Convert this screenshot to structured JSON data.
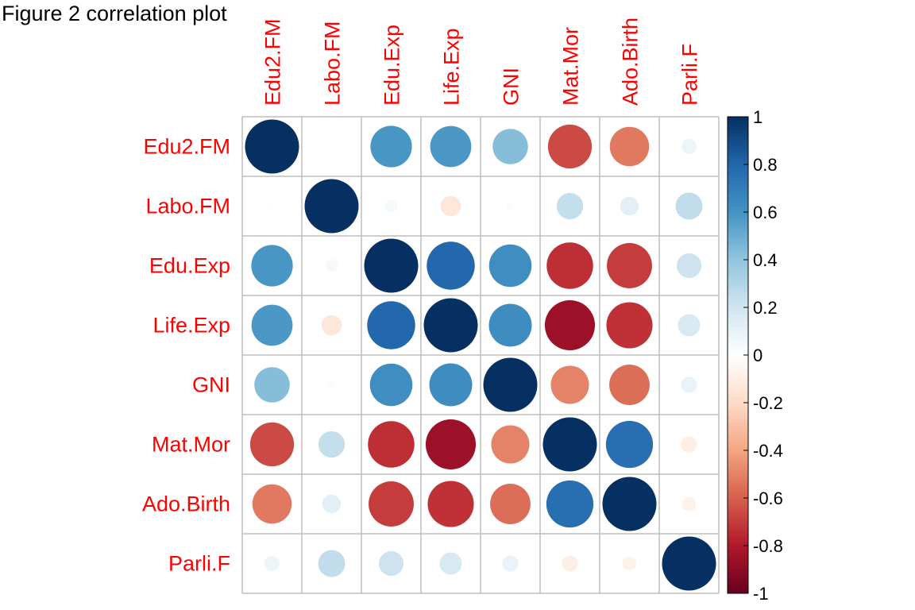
{
  "chart_data": {
    "type": "heatmap",
    "title": "Figure 2 correlation plot",
    "variables": [
      "Edu2.FM",
      "Labo.FM",
      "Edu.Exp",
      "Life.Exp",
      "GNI",
      "Mat.Mor",
      "Ado.Birth",
      "Parli.F"
    ],
    "values": [
      [
        1.0,
        0.01,
        0.59,
        0.58,
        0.43,
        -0.66,
        -0.53,
        0.08
      ],
      [
        0.01,
        1.0,
        0.05,
        -0.14,
        -0.02,
        0.24,
        0.12,
        0.25
      ],
      [
        0.59,
        0.05,
        1.0,
        0.79,
        0.62,
        -0.74,
        -0.7,
        0.21
      ],
      [
        0.58,
        -0.14,
        0.79,
        1.0,
        0.63,
        -0.86,
        -0.73,
        0.17
      ],
      [
        0.43,
        -0.02,
        0.62,
        0.63,
        1.0,
        -0.5,
        -0.56,
        0.09
      ],
      [
        -0.66,
        0.24,
        -0.74,
        -0.86,
        -0.5,
        1.0,
        0.76,
        -0.09
      ],
      [
        -0.53,
        0.12,
        -0.7,
        -0.73,
        -0.56,
        0.76,
        1.0,
        -0.07
      ],
      [
        0.08,
        0.25,
        0.21,
        0.17,
        0.09,
        -0.09,
        -0.07,
        1.0
      ]
    ],
    "colorbar": {
      "range": [
        -1,
        1
      ],
      "ticks": [
        "1",
        "0.8",
        "0.6",
        "0.4",
        "0.2",
        "0",
        "-0.2",
        "-0.4",
        "-0.6",
        "-0.8",
        "-1"
      ]
    },
    "label_color": "#FF0000",
    "grid_color": "#BEBEBE",
    "palette": [
      "#67001F",
      "#B2182B",
      "#D6604D",
      "#F4A582",
      "#FDDBC7",
      "#FFFFFF",
      "#D1E5F0",
      "#92C5DE",
      "#4393C3",
      "#2166AC",
      "#053061"
    ]
  }
}
